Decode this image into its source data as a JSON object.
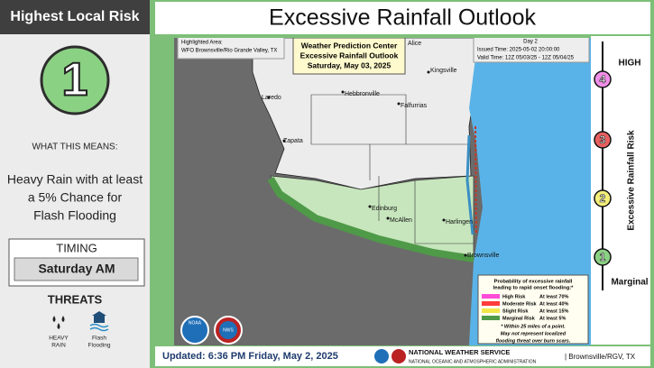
{
  "sidebar": {
    "header": "Highest Local Risk",
    "risk_level": "1",
    "means_label": "WHAT THIS MEANS:",
    "means_text": [
      "Heavy Rain with at least",
      "a 5% Chance for",
      "Flash Flooding"
    ],
    "timing_label": "TIMING",
    "timing_value": "Saturday AM",
    "threats_label": "THREATS",
    "threats": [
      [
        "HEAVY",
        "RAIN"
      ],
      [
        "Flash",
        "Flooding"
      ]
    ]
  },
  "title": "Excessive Rainfall Outlook",
  "map": {
    "highlighted": [
      "Highlighted Area:",
      "WFO Brownsville/Rio Grande Valley, TX"
    ],
    "center_box": [
      "Weather Prediction Center",
      "Excessive Rainfall Outlook",
      "Saturday, May 03, 2025"
    ],
    "day_box": [
      "Day 2",
      "Issued Time: 2025-05-02 20:00:00",
      "Valid Time: 12Z 05/03/25 - 12Z 05/04/25"
    ],
    "cities": [
      "Alice",
      "Kingsville",
      "Laredo",
      "Hebbronville",
      "Falfurrias",
      "Zapata",
      "Edinburg",
      "McAllen",
      "Harlingen",
      "Brownsville"
    ],
    "legend": {
      "title": [
        "Probability of excessive rainfall",
        "leading to rapid onset flooding:*"
      ],
      "items": [
        {
          "name": "High Risk",
          "threshold": "At least 70%"
        },
        {
          "name": "Moderate Risk",
          "threshold": "At least 40%"
        },
        {
          "name": "Slight Risk",
          "threshold": "At least 15%"
        },
        {
          "name": "Marginal Risk",
          "threshold": "At least  5%"
        }
      ],
      "notes": [
        "* Within 25 miles of a point.",
        "May not represent localized",
        "flooding threat over burn scars."
      ]
    },
    "logos": [
      "NOAA",
      "NWS"
    ]
  },
  "scale": {
    "top": "HIGH",
    "bottom": "Marginal",
    "axis_label": "Excessive Rainfall Risk",
    "levels": [
      "4",
      "3",
      "2",
      "1"
    ]
  },
  "footer": {
    "updated": "Updated: 6:36 PM Friday, May 2, 2025",
    "nws": "NATIONAL WEATHER SERVICE",
    "noaa": "NATIONAL OCEANIC AND ATMOSPHERIC ADMINISTRATION",
    "office": "| Brownsville/RGV, TX"
  }
}
